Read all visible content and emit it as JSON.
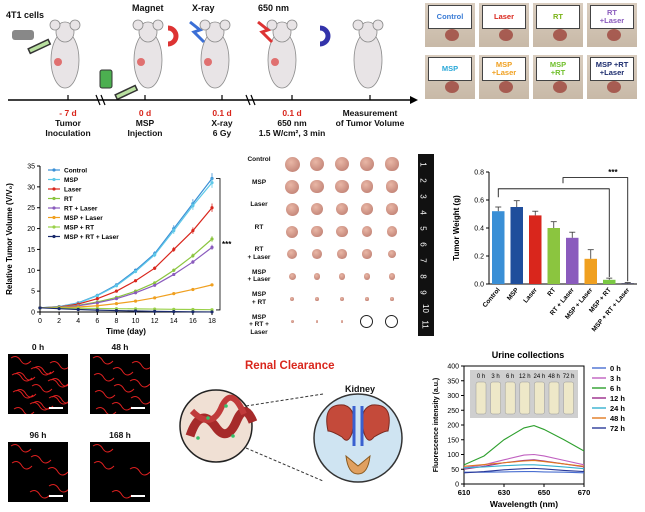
{
  "timeline": {
    "cells": "4T1 cells",
    "magnet": "Magnet",
    "xray": "X-ray",
    "nm": "650 nm",
    "steps": [
      {
        "day": "- 7 d",
        "label": "Tumor\nInoculation"
      },
      {
        "day": "0 d",
        "label": "MSP\nInjection"
      },
      {
        "day": "0.1 d",
        "label": "X-ray\n6 Gy"
      },
      {
        "day": "0.1 d",
        "label": "650 nm\n1.5 W/cm², 3 min"
      },
      {
        "day": "",
        "label": "Measurement\nof Tumor Volume"
      }
    ]
  },
  "mice_photos": {
    "labels": [
      "Control",
      "Laser",
      "RT",
      "RT\n+Laser",
      "MSP",
      "MSP\n+Laser",
      "MSP\n+RT",
      "MSP +RT\n+Laser"
    ],
    "colors": [
      "#3a7bd5",
      "#d9261c",
      "#7ab317",
      "#8a5bbd",
      "#2aa8d8",
      "#f0a020",
      "#6fbf2a",
      "#1a2a6c"
    ]
  },
  "tumor_photo": {
    "rows": [
      "Control",
      "MSP",
      "Laser",
      "RT",
      "RT\n+ Laser",
      "MSP\n+ Laser",
      "MSP\n+ RT",
      "MSP\n+ RT + Laser"
    ],
    "ruler": [
      "1",
      "2",
      "3",
      "4",
      "5",
      "6",
      "7",
      "8",
      "9",
      "10",
      "11"
    ]
  },
  "micro": {
    "labels": [
      "0 h",
      "48 h",
      "96 h",
      "168 h"
    ]
  },
  "renal": {
    "title": "Renal Clearance",
    "kidney": "Kidney"
  },
  "chart_data": [
    {
      "type": "line",
      "ylabel": "Relative Tumor Volume (V/V₀)",
      "xlabel": "Time (day)",
      "x": [
        0,
        2,
        4,
        6,
        8,
        10,
        12,
        14,
        16,
        18
      ],
      "ylim": [
        0,
        35
      ],
      "yticks": [
        0,
        5,
        10,
        15,
        20,
        25,
        30,
        35
      ],
      "series": [
        {
          "name": "Control",
          "color": "#3a8fd6",
          "values": [
            1,
            1.3,
            2.2,
            4,
            6.5,
            10,
            14,
            20,
            26,
            32
          ]
        },
        {
          "name": "MSP",
          "color": "#5ec8e8",
          "values": [
            1,
            1.3,
            2.1,
            3.9,
            6.3,
            9.7,
            13.7,
            19.5,
            25.5,
            31
          ]
        },
        {
          "name": "Laser",
          "color": "#d9261c",
          "values": [
            1,
            1.2,
            1.9,
            3.2,
            5,
            7.5,
            10.5,
            15,
            19.5,
            25
          ]
        },
        {
          "name": "RT",
          "color": "#8bc53f",
          "values": [
            1,
            1.15,
            1.6,
            2.4,
            3.5,
            5,
            7,
            10,
            13.5,
            17.5
          ]
        },
        {
          "name": "RT + Laser",
          "color": "#8a5bbd",
          "values": [
            1,
            1.1,
            1.5,
            2.2,
            3.2,
            4.6,
            6.4,
            9,
            12,
            15.5
          ]
        },
        {
          "name": "MSP + Laser",
          "color": "#f0a020",
          "values": [
            1,
            1.05,
            1.2,
            1.5,
            2,
            2.6,
            3.4,
            4.4,
            5.4,
            6.5
          ]
        },
        {
          "name": "MSP + RT",
          "color": "#9ad14a",
          "values": [
            1,
            0.95,
            0.9,
            0.85,
            0.8,
            0.75,
            0.7,
            0.65,
            0.6,
            0.55
          ]
        },
        {
          "name": "MSP + RT + Laser",
          "color": "#1a2a6c",
          "values": [
            1,
            0.8,
            0.6,
            0.45,
            0.35,
            0.25,
            0.15,
            0.1,
            0.05,
            0.02
          ]
        }
      ],
      "sig": "***"
    },
    {
      "type": "bar",
      "ylabel": "Tumor Weight (g)",
      "ylim": [
        0,
        0.8
      ],
      "yticks": [
        "0.0",
        "0.2",
        "0.4",
        "0.6",
        "0.8"
      ],
      "categories": [
        "Control",
        "MSP",
        "Laser",
        "RT",
        "RT + Laser",
        "MSP + Laser",
        "MSP + RT",
        "MSP + RT + Laser"
      ],
      "values": [
        0.52,
        0.55,
        0.49,
        0.4,
        0.33,
        0.18,
        0.03,
        0.005
      ],
      "errors": [
        0.03,
        0.045,
        0.03,
        0.045,
        0.04,
        0.065,
        0.012,
        0.005
      ],
      "colors": [
        "#3a8fd6",
        "#1f4e9c",
        "#d9261c",
        "#8bc53f",
        "#8a5bbd",
        "#f0a020",
        "#7ac943",
        "#1a1a3a"
      ],
      "sig": "***"
    },
    {
      "type": "line",
      "title": "Urine collections",
      "xlabel": "Wavelength (nm)",
      "ylabel": "Fluorescence intensity (a.u.)",
      "xlim": [
        610,
        670
      ],
      "ylim": [
        0,
        400
      ],
      "xticks": [
        610,
        630,
        650,
        670
      ],
      "yticks": [
        0,
        50,
        100,
        150,
        200,
        250,
        300,
        350,
        400
      ],
      "x": [
        610,
        620,
        630,
        640,
        645,
        650,
        660,
        670
      ],
      "vial_labels": [
        "0 h",
        "3 h",
        "6 h",
        "12 h",
        "24 h",
        "48 h",
        "72 h"
      ],
      "series": [
        {
          "name": "0 h",
          "color": "#4a6fd1",
          "values": [
            40,
            40,
            41,
            42,
            42,
            41,
            40,
            38
          ]
        },
        {
          "name": "3 h",
          "color": "#c060c0",
          "values": [
            55,
            65,
            82,
            98,
            100,
            95,
            80,
            65
          ]
        },
        {
          "name": "6 h",
          "color": "#2ea02e",
          "values": [
            65,
            95,
            150,
            190,
            198,
            185,
            150,
            112
          ]
        },
        {
          "name": "12 h",
          "color": "#9a2a8a",
          "values": [
            50,
            60,
            72,
            80,
            82,
            78,
            68,
            58
          ]
        },
        {
          "name": "24 h",
          "color": "#35b0d0",
          "values": [
            55,
            58,
            62,
            65,
            65,
            63,
            58,
            52
          ]
        },
        {
          "name": "48 h",
          "color": "#e07a20",
          "values": [
            60,
            66,
            72,
            78,
            80,
            76,
            68,
            60
          ]
        },
        {
          "name": "72 h",
          "color": "#2a3a9a",
          "values": [
            38,
            42,
            48,
            52,
            53,
            51,
            46,
            42
          ]
        }
      ]
    }
  ]
}
